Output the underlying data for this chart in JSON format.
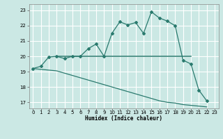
{
  "xlabel": "Humidex (Indice chaleur)",
  "bg_color": "#cbe8e4",
  "grid_major_color": "#ffffff",
  "grid_minor_color": "#dff0ed",
  "line_color": "#2a7a6e",
  "xlim": [
    -0.5,
    23.5
  ],
  "ylim": [
    16.6,
    23.4
  ],
  "xticks": [
    0,
    1,
    2,
    3,
    4,
    5,
    6,
    7,
    8,
    9,
    10,
    11,
    12,
    13,
    14,
    15,
    16,
    17,
    18,
    19,
    20,
    21,
    22,
    23
  ],
  "yticks": [
    17,
    18,
    19,
    20,
    21,
    22,
    23
  ],
  "curve1_x": [
    0,
    1,
    2,
    3,
    4,
    5,
    6,
    7,
    8,
    9,
    10,
    11,
    12,
    13,
    14,
    15,
    16,
    17,
    18,
    19,
    20,
    21,
    22
  ],
  "curve1_y": [
    19.2,
    19.35,
    19.95,
    20.0,
    19.85,
    20.0,
    20.0,
    20.5,
    20.8,
    20.0,
    21.5,
    22.25,
    22.05,
    22.2,
    21.5,
    22.9,
    22.5,
    22.3,
    22.0,
    19.75,
    19.5,
    17.8,
    17.1
  ],
  "curve2_x": [
    3,
    4,
    5,
    6,
    7,
    8,
    9,
    10,
    11,
    12,
    13,
    14,
    15,
    16,
    17,
    18,
    19,
    20
  ],
  "curve2_y": [
    20.0,
    20.0,
    20.0,
    20.0,
    20.0,
    20.0,
    20.0,
    20.0,
    20.0,
    20.0,
    20.0,
    20.0,
    20.0,
    20.0,
    20.0,
    20.0,
    20.0,
    20.0
  ],
  "curve3_x": [
    0,
    3,
    4,
    5,
    6,
    7,
    8,
    9,
    10,
    11,
    12,
    13,
    14,
    15,
    16,
    17,
    18,
    19,
    20,
    21,
    22
  ],
  "curve3_y": [
    19.2,
    19.05,
    18.9,
    18.75,
    18.6,
    18.45,
    18.3,
    18.15,
    18.0,
    17.85,
    17.7,
    17.55,
    17.4,
    17.25,
    17.1,
    17.0,
    16.95,
    16.85,
    16.8,
    16.75,
    16.7
  ]
}
